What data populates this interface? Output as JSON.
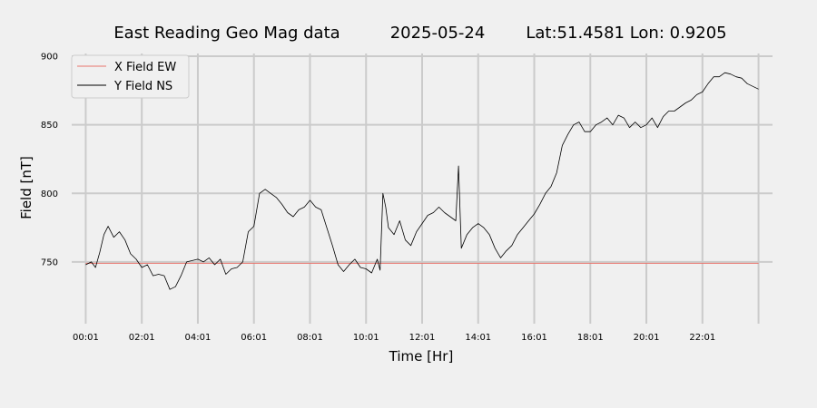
{
  "chart_data": {
    "type": "line",
    "title_parts": [
      "East Reading Geo Mag data",
      "2025-05-24",
      "Lat:51.4581  Lon: 0.9205"
    ],
    "xlabel": "Time  [Hr]",
    "ylabel": "Field  [nT]",
    "x_unit": "hours",
    "xlim": [
      -0.5,
      24.5
    ],
    "ylim": [
      705,
      902
    ],
    "x_ticks": [
      0,
      2,
      4,
      6,
      8,
      10,
      12,
      14,
      16,
      18,
      20,
      22,
      24
    ],
    "x_tick_labels": [
      "00:01",
      "02:01",
      "04:01",
      "06:01",
      "08:01",
      "10:01",
      "12:01",
      "14:01",
      "16:01",
      "18:01",
      "20:01",
      "22:01",
      ""
    ],
    "y_ticks": [
      750,
      800,
      850,
      900
    ],
    "y_tick_labels": [
      "750",
      "800",
      "850",
      "900"
    ],
    "grid": true,
    "legend_position": "top-left",
    "series": [
      {
        "name": "X Field EW",
        "color": "#e8736b",
        "x": [
          0,
          24
        ],
        "y": [
          749,
          749
        ]
      },
      {
        "name": "Y Field NS",
        "color": "#000000",
        "x": [
          0,
          0.2,
          0.35,
          0.5,
          0.65,
          0.8,
          1.0,
          1.2,
          1.4,
          1.6,
          1.8,
          2.0,
          2.2,
          2.4,
          2.6,
          2.8,
          3.0,
          3.2,
          3.4,
          3.6,
          3.8,
          4.0,
          4.2,
          4.4,
          4.6,
          4.8,
          5.0,
          5.2,
          5.4,
          5.6,
          5.8,
          6.0,
          6.2,
          6.4,
          6.6,
          6.8,
          7.0,
          7.2,
          7.4,
          7.6,
          7.8,
          8.0,
          8.2,
          8.4,
          8.6,
          8.8,
          9.0,
          9.2,
          9.4,
          9.6,
          9.8,
          10.0,
          10.2,
          10.4,
          10.5,
          10.6,
          10.7,
          10.8,
          11.0,
          11.2,
          11.4,
          11.6,
          11.8,
          12.0,
          12.2,
          12.4,
          12.6,
          12.8,
          13.0,
          13.2,
          13.3,
          13.4,
          13.6,
          13.8,
          14.0,
          14.2,
          14.4,
          14.6,
          14.8,
          15.0,
          15.2,
          15.4,
          15.6,
          15.8,
          16.0,
          16.2,
          16.4,
          16.6,
          16.8,
          17.0,
          17.2,
          17.4,
          17.6,
          17.8,
          18.0,
          18.2,
          18.4,
          18.6,
          18.8,
          19.0,
          19.2,
          19.4,
          19.6,
          19.8,
          20.0,
          20.2,
          20.4,
          20.6,
          20.8,
          21.0,
          21.2,
          21.4,
          21.6,
          21.8,
          22.0,
          22.2,
          22.4,
          22.6,
          22.8,
          23.0,
          23.2,
          23.4,
          23.6,
          23.8,
          24.0
        ],
        "y": [
          748,
          750,
          746,
          757,
          770,
          776,
          768,
          772,
          766,
          756,
          752,
          746,
          748,
          740,
          741,
          740,
          730,
          732,
          740,
          750,
          751,
          752,
          750,
          753,
          748,
          752,
          741,
          745,
          746,
          750,
          772,
          776,
          800,
          803,
          800,
          797,
          792,
          786,
          783,
          788,
          790,
          795,
          790,
          788,
          775,
          762,
          748,
          743,
          748,
          752,
          746,
          745,
          742,
          752,
          744,
          800,
          790,
          775,
          770,
          780,
          766,
          762,
          772,
          778,
          784,
          786,
          790,
          786,
          783,
          780,
          820,
          760,
          770,
          775,
          778,
          775,
          770,
          760,
          753,
          758,
          762,
          770,
          775,
          780,
          785,
          792,
          800,
          805,
          815,
          835,
          843,
          850,
          852,
          845,
          845,
          850,
          852,
          855,
          850,
          857,
          855,
          848,
          852,
          848,
          850,
          855,
          848,
          856,
          860,
          860,
          863,
          866,
          868,
          872,
          874,
          880,
          885,
          885,
          888,
          887,
          885,
          884,
          880,
          878,
          876
        ]
      }
    ]
  }
}
